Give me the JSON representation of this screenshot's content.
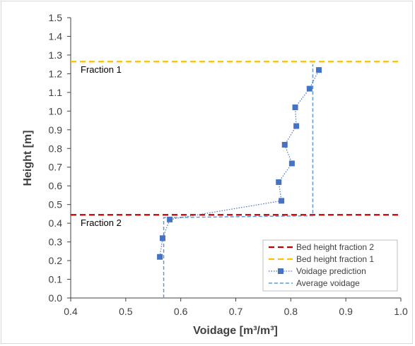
{
  "chart_data": {
    "type": "scatter",
    "xlabel": "Voidage [m³/m³]",
    "ylabel": "Height [m]",
    "xlim": [
      0.4,
      1.0
    ],
    "ylim": [
      0.0,
      1.5
    ],
    "x_ticks": [
      "0.4",
      "0.5",
      "0.6",
      "0.7",
      "0.8",
      "0.9",
      "1.0"
    ],
    "y_ticks": [
      "0.0",
      "0.1",
      "0.2",
      "0.3",
      "0.4",
      "0.5",
      "0.6",
      "0.7",
      "0.8",
      "0.9",
      "1.0",
      "1.1",
      "1.2",
      "1.3",
      "1.4",
      "1.5"
    ],
    "grid": false,
    "legend_position": "bottom-right",
    "series": [
      {
        "name": "Bed height fraction 2",
        "kind": "hline",
        "style": "dashed",
        "color": "#c00000",
        "y": 0.445
      },
      {
        "name": "Bed height fraction 1",
        "kind": "hline",
        "style": "dashed",
        "color": "#ffc000",
        "y": 1.265
      },
      {
        "name": "Voidage prediction",
        "kind": "line-markers",
        "style": "dotted",
        "color": "#4472c4",
        "points": [
          {
            "x": 0.562,
            "y": 0.22
          },
          {
            "x": 0.567,
            "y": 0.32
          },
          {
            "x": 0.58,
            "y": 0.42
          },
          {
            "x": 0.783,
            "y": 0.52
          },
          {
            "x": 0.778,
            "y": 0.62
          },
          {
            "x": 0.802,
            "y": 0.72
          },
          {
            "x": 0.789,
            "y": 0.82
          },
          {
            "x": 0.81,
            "y": 0.92
          },
          {
            "x": 0.808,
            "y": 1.02
          },
          {
            "x": 0.834,
            "y": 1.12
          },
          {
            "x": 0.851,
            "y": 1.22
          }
        ]
      },
      {
        "name": "Average voidage",
        "kind": "step",
        "style": "dashed",
        "color": "#5b9bd5",
        "points": [
          {
            "x": 0.569,
            "y": 0.0
          },
          {
            "x": 0.569,
            "y": 0.43
          },
          {
            "x": 0.84,
            "y": 0.44
          },
          {
            "x": 0.84,
            "y": 1.25
          }
        ]
      }
    ],
    "annotations": [
      {
        "text": "Fraction 1",
        "x": 0.418,
        "y": 1.205
      },
      {
        "text": "Fraction 2",
        "x": 0.418,
        "y": 0.385
      }
    ]
  }
}
